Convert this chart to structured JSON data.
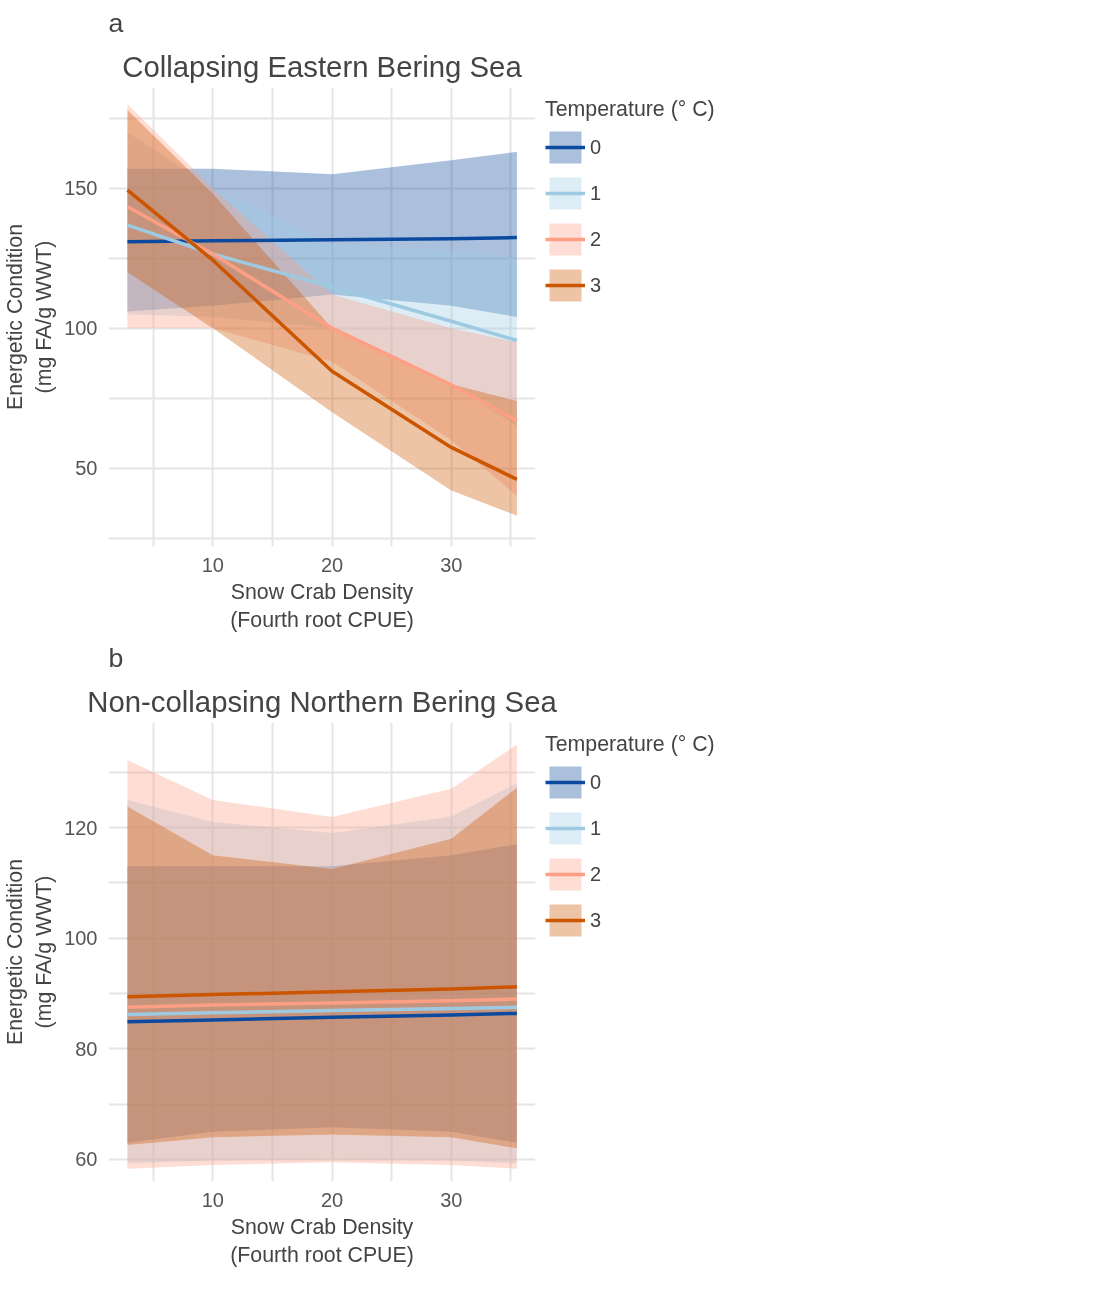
{
  "chart_data": [
    {
      "type": "line",
      "title": "Collapsing Eastern Bering Sea",
      "xlabel": "Snow Crab Density\n(Fourth root CPUE)",
      "ylabel": "Energetic Condition\n(mg FA/g WWT)",
      "legend_title": "Temperature (° C)",
      "legend": "right",
      "grid": true,
      "annotations": [
        "a"
      ],
      "x": [
        2.84,
        10,
        20,
        30,
        35.5
      ],
      "xlim": [
        1.25,
        37.06
      ],
      "xticks": [
        {
          "value": 5,
          "label": null
        },
        10,
        {
          "value": 15,
          "label": null
        },
        20,
        {
          "value": 25,
          "label": null
        },
        30,
        {
          "value": 35,
          "label": null
        }
      ],
      "ylim": [
        22,
        186
      ],
      "yticks": [
        {
          "value": 25,
          "label": null
        },
        50,
        {
          "value": 75,
          "label": null
        },
        100,
        {
          "value": 125,
          "label": null
        },
        150,
        {
          "value": 175,
          "label": null
        }
      ],
      "series": [
        {
          "name": "0",
          "color": "#0b4a9e",
          "values": [
            130.9,
            131.2,
            131.6,
            132.0,
            132.4
          ],
          "lower": [
            106,
            108,
            112,
            108,
            104
          ],
          "upper": [
            157,
            157,
            155,
            160,
            163
          ]
        },
        {
          "name": "1",
          "color": "#9ecae1",
          "values": [
            136.8,
            126.5,
            114.7,
            102.5,
            95.6
          ],
          "lower": [
            105,
            104,
            100,
            80,
            65
          ],
          "upper": [
            170,
            150,
            130,
            128,
            125
          ]
        },
        {
          "name": "2",
          "color": "#fc9f84",
          "values": [
            143.4,
            126.5,
            100,
            79.8,
            67
          ],
          "lower": [
            100,
            100,
            88,
            60,
            40
          ],
          "upper": [
            180,
            150,
            112,
            100,
            95
          ]
        },
        {
          "name": "3",
          "color": "#cc5500",
          "values": [
            149.3,
            124.3,
            84.6,
            57.4,
            46
          ],
          "lower": [
            120,
            100,
            70,
            42,
            33
          ],
          "upper": [
            178,
            148,
            100,
            80,
            74
          ]
        }
      ]
    },
    {
      "type": "line",
      "title": "Non-collapsing Northern Bering Sea",
      "xlabel": "Snow Crab Density\n(Fourth root CPUE)",
      "ylabel": "Energetic Condition\n(mg FA/g WWT)",
      "legend_title": "Temperature (° C)",
      "legend": "right",
      "grid": true,
      "annotations": [
        "b"
      ],
      "x": [
        2.84,
        10,
        20,
        30,
        35.5
      ],
      "xlim": [
        1.25,
        37.06
      ],
      "xticks": [
        {
          "value": 5,
          "label": null
        },
        10,
        {
          "value": 15,
          "label": null
        },
        20,
        {
          "value": 25,
          "label": null
        },
        30,
        {
          "value": 35,
          "label": null
        }
      ],
      "ylim": [
        56,
        139
      ],
      "yticks": [
        60,
        {
          "value": 70,
          "label": null
        },
        80,
        {
          "value": 90,
          "label": null
        },
        100,
        {
          "value": 110,
          "label": null
        },
        120,
        {
          "value": 130,
          "label": null
        }
      ],
      "series": [
        {
          "name": "0",
          "color": "#0b4a9e",
          "values": [
            84.9,
            85.2,
            85.7,
            86.1,
            86.4
          ],
          "lower": [
            63,
            65,
            65.8,
            65,
            63
          ],
          "upper": [
            113,
            113,
            113,
            115,
            117
          ]
        },
        {
          "name": "1",
          "color": "#9ecae1",
          "values": [
            86.2,
            86.5,
            86.9,
            87.3,
            87.5
          ],
          "lower": [
            59.3,
            59.8,
            60,
            59.8,
            59.3
          ],
          "upper": [
            125,
            121,
            119,
            122,
            128
          ]
        },
        {
          "name": "2",
          "color": "#fc9f84",
          "values": [
            87.5,
            87.9,
            88.3,
            88.7,
            89
          ],
          "lower": [
            58.3,
            59,
            59.5,
            59,
            58.3
          ],
          "upper": [
            132.2,
            125,
            121.9,
            127,
            135
          ]
        },
        {
          "name": "3",
          "color": "#cc5500",
          "values": [
            89.4,
            89.8,
            90.3,
            90.8,
            91.2
          ],
          "lower": [
            62.6,
            64,
            64.5,
            64,
            62
          ],
          "upper": [
            123.8,
            115,
            112.5,
            118,
            127.2
          ]
        }
      ]
    }
  ]
}
